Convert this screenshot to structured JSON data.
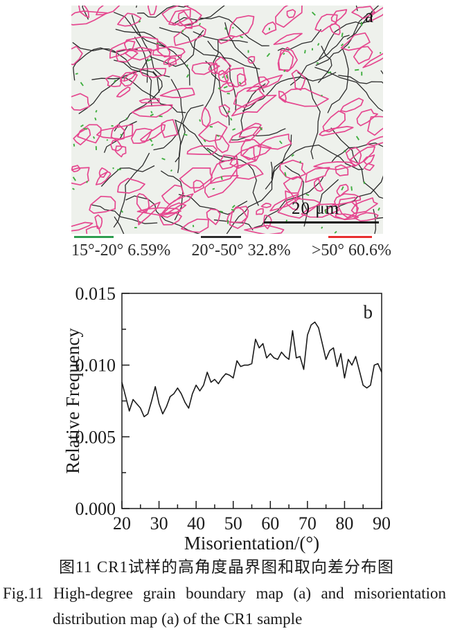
{
  "figure": {
    "panel_a": {
      "label": "a",
      "scale_bar_text": "20 μm",
      "colors": {
        "background": "#eef1ec",
        "pink": "#e5478f",
        "black": "#2b2b2b",
        "green": "#3fae3f"
      }
    },
    "legend": [
      {
        "label": "15°-20° 6.59%",
        "color": "#2e9e50"
      },
      {
        "label": "20°-50° 32.8%",
        "color": "#2b2b2b"
      },
      {
        "label": ">50° 60.6%",
        "color": "#e82f2f"
      }
    ],
    "caption_zh": "图11 CR1试样的高角度晶界图和取向差分布图",
    "caption_en_line1": "Fig.11 High-degree grain boundary map (a) and misorientation",
    "caption_en_line2": "distribution map (a) of the CR1 sample"
  },
  "chart_data": {
    "type": "line",
    "title": "",
    "xlabel": "Misorientation/(°)",
    "ylabel": "Relative Frequency",
    "panel_label": "b",
    "grid": false,
    "legend_position": "none",
    "xlim": [
      20,
      90
    ],
    "ylim": [
      0,
      0.015
    ],
    "xticks": [
      20,
      30,
      40,
      50,
      60,
      70,
      80,
      90
    ],
    "minor_x_step": 5,
    "yticks": [
      0,
      0.005,
      0.01,
      0.015
    ],
    "ytick_labels": [
      "0.000",
      "0.005",
      "0.010",
      "0.015"
    ],
    "minor_y_step": 0.0025,
    "line_color": "#1a1a1a",
    "axis_color": "#1a1a1a",
    "x": [
      20,
      21,
      22,
      23,
      24,
      25,
      26,
      27,
      28,
      29,
      30,
      31,
      32,
      33,
      34,
      35,
      36,
      37,
      38,
      39,
      40,
      41,
      42,
      43,
      44,
      45,
      46,
      47,
      48,
      49,
      50,
      51,
      52,
      53,
      54,
      55,
      56,
      57,
      58,
      59,
      60,
      61,
      62,
      63,
      64,
      65,
      66,
      67,
      68,
      69,
      70,
      71,
      72,
      73,
      74,
      75,
      76,
      77,
      78,
      79,
      80,
      81,
      82,
      83,
      84,
      85,
      86,
      87,
      88,
      89,
      90
    ],
    "y": [
      0.0088,
      0.0078,
      0.0068,
      0.0076,
      0.0073,
      0.007,
      0.0064,
      0.0066,
      0.0075,
      0.0085,
      0.0073,
      0.0066,
      0.0071,
      0.0078,
      0.008,
      0.0084,
      0.008,
      0.0074,
      0.007,
      0.008,
      0.0086,
      0.0082,
      0.0086,
      0.0095,
      0.0088,
      0.009,
      0.0087,
      0.0091,
      0.0094,
      0.0093,
      0.0091,
      0.0103,
      0.0099,
      0.01,
      0.01,
      0.0101,
      0.0118,
      0.0112,
      0.0115,
      0.0105,
      0.0108,
      0.0105,
      0.0104,
      0.0109,
      0.0106,
      0.0104,
      0.0124,
      0.0105,
      0.0106,
      0.0097,
      0.0121,
      0.0128,
      0.013,
      0.0126,
      0.0115,
      0.0104,
      0.011,
      0.0112,
      0.0099,
      0.0108,
      0.0091,
      0.0104,
      0.01,
      0.0106,
      0.0096,
      0.0086,
      0.0084,
      0.0086,
      0.01,
      0.0101,
      0.0095
    ]
  }
}
